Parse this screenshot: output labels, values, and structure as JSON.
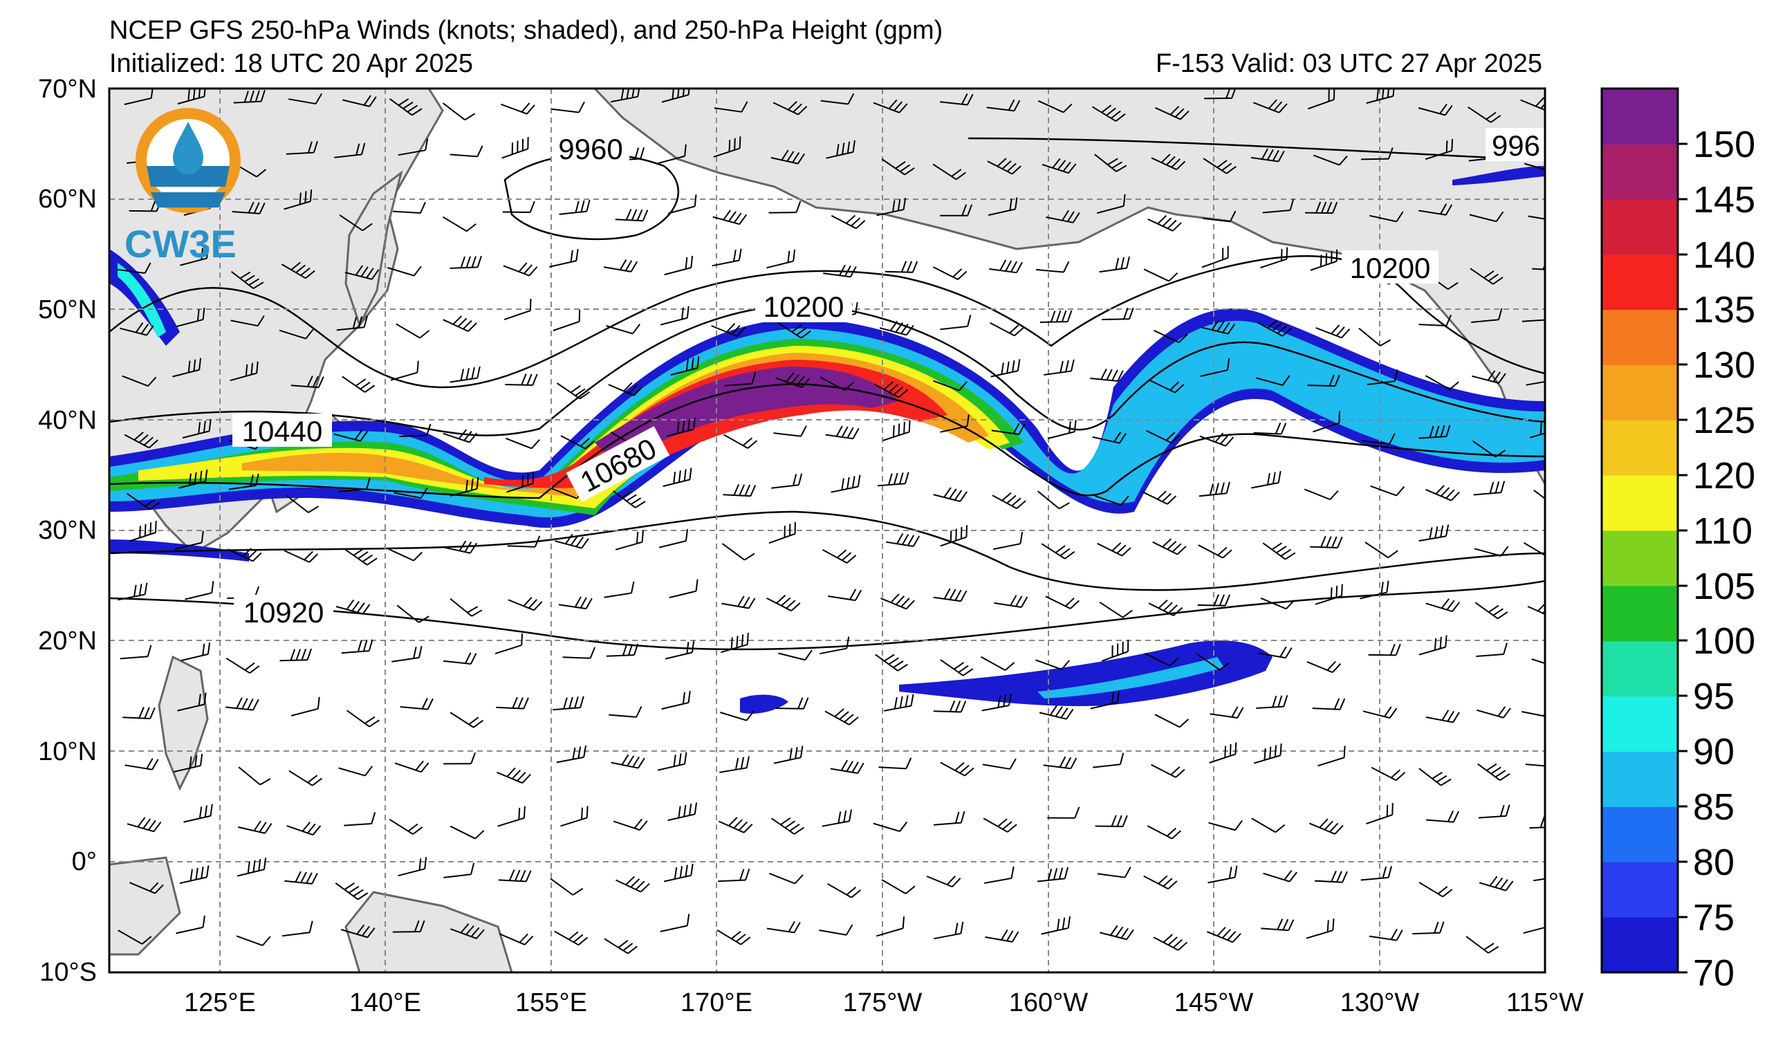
{
  "title": {
    "line1": "NCEP GFS 250-hPa Winds (knots; shaded), and 250-hPa Height (gpm)",
    "line2": "Initialized: 18 UTC 20 Apr 2025",
    "valid": "F-153  Valid: 03 UTC 27 Apr 2025"
  },
  "logo": {
    "text": "CW3E",
    "icon": "water-drop-icon"
  },
  "axes": {
    "lat_labels": [
      "70°N",
      "60°N",
      "50°N",
      "40°N",
      "30°N",
      "20°N",
      "10°N",
      "0°",
      "10°S"
    ],
    "lon_labels": [
      "125°E",
      "140°E",
      "155°E",
      "170°E",
      "175°W",
      "160°W",
      "145°W",
      "130°W",
      "115°W"
    ]
  },
  "contour_labels": [
    "9960",
    "996",
    "10200",
    "10200",
    "10440",
    "10680",
    "10920"
  ],
  "colorbar": {
    "ticks": [
      "150",
      "145",
      "140",
      "135",
      "130",
      "125",
      "120",
      "110",
      "105",
      "100",
      "95",
      "90",
      "85",
      "80",
      "75",
      "70"
    ],
    "colors": [
      "#1a1ad0",
      "#2a3df0",
      "#1f6ff5",
      "#1fbcf0",
      "#1ef0e6",
      "#1fe0a6",
      "#1fbf2a",
      "#7fd31f",
      "#f5f51f",
      "#f5c81f",
      "#f5a21f",
      "#f57a1f",
      "#f5241f",
      "#d21f3a",
      "#a81f6a",
      "#7a1f8f"
    ]
  },
  "colors": {
    "land": "#e5e5e5",
    "coast": "#666666",
    "grid": "#888888"
  }
}
